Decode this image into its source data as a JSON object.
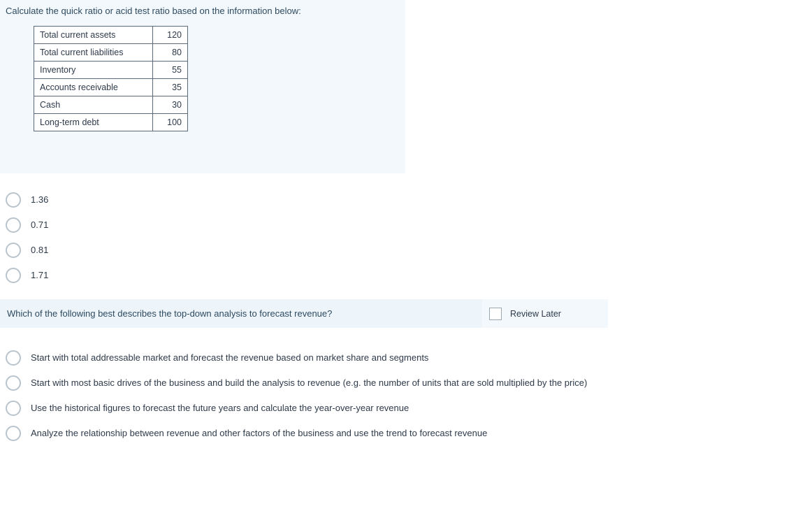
{
  "q1": {
    "prompt": "Calculate the quick ratio or acid test ratio based on the information below:",
    "table": {
      "rows": [
        {
          "label": "Total current assets",
          "value": "120"
        },
        {
          "label": "Total current liabilities",
          "value": "80"
        },
        {
          "label": "Inventory",
          "value": "55"
        },
        {
          "label": "Accounts receivable",
          "value": "35"
        },
        {
          "label": "Cash",
          "value": "30"
        },
        {
          "label": "Long-term debt",
          "value": "100"
        }
      ],
      "border_color": "#5a6a78",
      "bg_color": "#ffffff",
      "cell_fontsize": 12.5
    },
    "panel_bg": "#f2f8fc",
    "options": [
      "1.36",
      "0.71",
      "0.81",
      "1.71"
    ]
  },
  "q2": {
    "prompt": "Which of the following best describes the top-down analysis to forecast revenue?",
    "review_label": "Review Later",
    "panel_bg": "#edf5fb",
    "review_panel_bg": "#f2f8fc",
    "options": [
      "Start with total addressable market and forecast the revenue based on market share and segments",
      "Start with most basic drives of the business and build the analysis to revenue (e.g. the number of units that are sold multiplied by the price)",
      "Use the historical figures to forecast the future years and calculate the year-over-year revenue",
      "Analyze the relationship between revenue and other factors of the business and use the trend to forecast revenue"
    ]
  },
  "styling": {
    "text_color": "#2e3a4a",
    "prompt_color": "#2e4a5f",
    "radio_border": "#b9c4cd",
    "checkbox_border": "#9aa6b0",
    "body_bg": "#ffffff",
    "font_family": "Arial",
    "base_fontsize": 13
  }
}
